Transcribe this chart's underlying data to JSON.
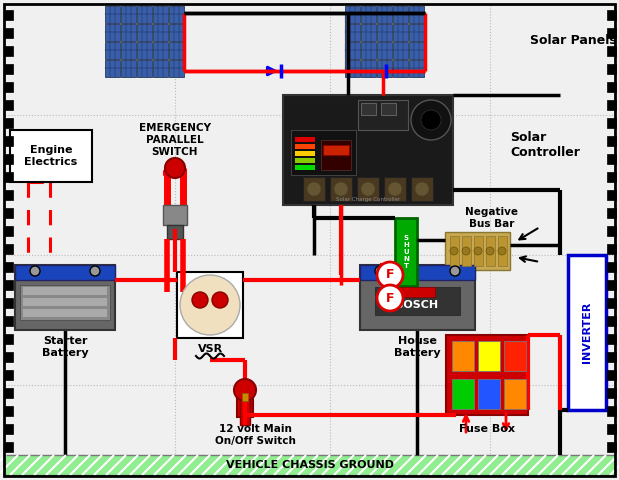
{
  "bg_color": "#f0f0f0",
  "title_bottom": "VEHICLE CHASSIS GROUND",
  "labels": {
    "solar_panels": "Solar Panels",
    "solar_controller": "Solar\nController",
    "engine_electrics": "Engine\nElectrics",
    "emergency_switch": "EMERGENCY\nPARALLEL\nSWITCH",
    "vsr": "VSR",
    "starter_battery": "Starter\nBattery",
    "house_battery": "House\nBattery",
    "main_switch": "12 volt Main\nOn/Off Switch",
    "shunt": "S\nH\nU\nN\nT",
    "negative_bus": "Negative\nBus Bar",
    "fuse_box": "Fuse Box",
    "inverter": "INVERTER"
  },
  "wire_red": "#ff0000",
  "wire_black": "#000000",
  "wire_blue": "#0000ff",
  "panel_blue": "#3a5faa",
  "panel_dark": "#1a3366",
  "controller_dark": "#1a1a1a",
  "battery_blue": "#1a44bb",
  "battery_gray": "#777777",
  "shunt_color": "#00aa00",
  "chassis_color": "#90EE90"
}
